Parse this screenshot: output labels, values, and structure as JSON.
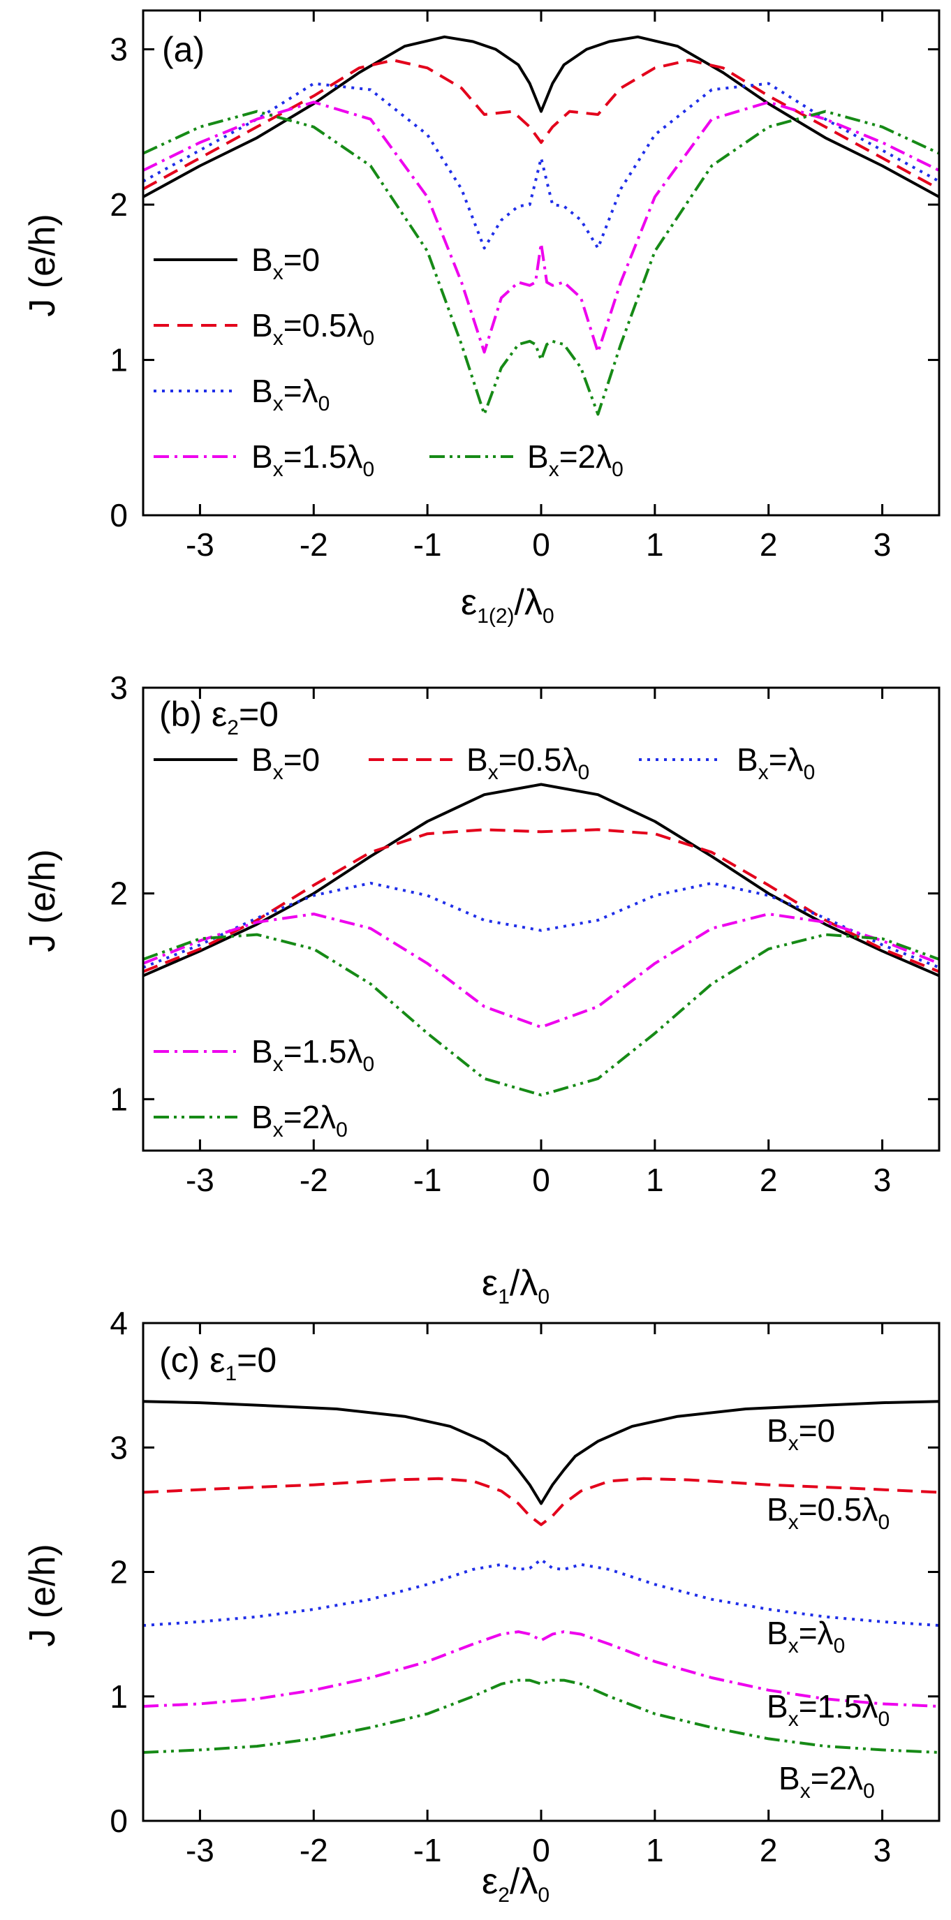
{
  "chart_data": [
    {
      "type": "line",
      "panel": "a",
      "title": "(a)",
      "xlabel": "ε1(2)/λ0",
      "ylabel": "J (e/h)",
      "xlim": [
        -3.5,
        3.5
      ],
      "ylim": [
        0,
        3.25
      ],
      "xticks": [
        -3,
        -2,
        -1,
        0,
        1,
        2,
        3
      ],
      "yticks": [
        0,
        1,
        2,
        3
      ],
      "series": [
        {
          "name": "Bx=0",
          "sub": "x",
          "tail": "=0",
          "color": "#000000",
          "dash": "solid",
          "x": [
            0,
            0.1,
            0.2,
            0.4,
            0.6,
            0.85,
            1.2,
            1.6,
            2.0,
            2.5,
            3.0,
            3.5
          ],
          "y": [
            2.6,
            2.78,
            2.9,
            3.0,
            3.05,
            3.08,
            3.02,
            2.85,
            2.65,
            2.43,
            2.25,
            2.05
          ]
        },
        {
          "name": "Bx=0.5λ0",
          "sub": "x",
          "tail": "=0.5λ0",
          "color": "#e3001b",
          "dash": "dashed",
          "x": [
            0,
            0.1,
            0.25,
            0.5,
            0.7,
            1.0,
            1.3,
            1.6,
            2.0,
            2.5,
            3.0,
            3.5
          ],
          "y": [
            2.4,
            2.5,
            2.6,
            2.58,
            2.75,
            2.88,
            2.93,
            2.88,
            2.7,
            2.5,
            2.3,
            2.1
          ]
        },
        {
          "name": "Bx=λ0",
          "sub": "x",
          "tail": "=λ0",
          "color": "#1f2ee8",
          "dash": "dotted",
          "x": [
            0,
            0.05,
            0.1,
            0.2,
            0.35,
            0.5,
            0.7,
            1.0,
            1.5,
            2.0,
            2.5,
            3.0,
            3.5
          ],
          "y": [
            2.3,
            2.15,
            2.0,
            1.99,
            1.9,
            1.72,
            2.1,
            2.45,
            2.74,
            2.78,
            2.55,
            2.35,
            2.15
          ]
        },
        {
          "name": "Bx=1.5λ0",
          "sub": "x",
          "tail": "=1.5λ0",
          "color": "#ee00ee",
          "dash": "dashdot",
          "x": [
            0,
            0.05,
            0.1,
            0.2,
            0.35,
            0.5,
            0.7,
            1.0,
            1.5,
            2.0,
            2.5,
            3.0,
            3.5
          ],
          "y": [
            1.75,
            1.5,
            1.48,
            1.5,
            1.4,
            1.05,
            1.5,
            2.05,
            2.55,
            2.66,
            2.55,
            2.4,
            2.22
          ]
        },
        {
          "name": "Bx=2λ0",
          "sub": "x",
          "tail": "=2λ0",
          "color": "#168a16",
          "dash": "dashdotdot",
          "x": [
            0,
            0.05,
            0.1,
            0.2,
            0.35,
            0.5,
            0.7,
            1.0,
            1.5,
            2.0,
            2.5,
            3.0,
            3.5
          ],
          "y": [
            1.0,
            1.1,
            1.12,
            1.1,
            0.95,
            0.65,
            1.1,
            1.7,
            2.25,
            2.5,
            2.6,
            2.5,
            2.33
          ]
        }
      ]
    },
    {
      "type": "line",
      "panel": "b",
      "title": "(b) ε2=0",
      "xlabel": "ε1/λ0",
      "ylabel": "J (e/h)",
      "xlim": [
        -3.5,
        3.5
      ],
      "ylim": [
        0.75,
        3.0
      ],
      "xticks": [
        -3,
        -2,
        -1,
        0,
        1,
        2,
        3
      ],
      "yticks": [
        1,
        2,
        3
      ],
      "series": [
        {
          "name": "Bx=0",
          "sub": "x",
          "tail": "=0",
          "color": "#000000",
          "dash": "solid",
          "x": [
            0,
            0.5,
            1.0,
            1.5,
            2.0,
            2.5,
            3.0,
            3.5
          ],
          "y": [
            2.53,
            2.48,
            2.35,
            2.18,
            2.0,
            1.85,
            1.72,
            1.6
          ]
        },
        {
          "name": "Bx=0.5λ0",
          "sub": "x",
          "tail": "=0.5λ0",
          "color": "#e3001b",
          "dash": "dashed",
          "x": [
            0,
            0.5,
            1.0,
            1.5,
            2.0,
            2.5,
            3.0,
            3.5
          ],
          "y": [
            2.3,
            2.31,
            2.29,
            2.2,
            2.04,
            1.87,
            1.73,
            1.62
          ]
        },
        {
          "name": "Bx=λ0",
          "sub": "x",
          "tail": "=λ0",
          "color": "#1f2ee8",
          "dash": "dotted",
          "x": [
            0,
            0.5,
            1.0,
            1.5,
            2.0,
            2.5,
            3.0,
            3.5
          ],
          "y": [
            1.82,
            1.87,
            1.99,
            2.05,
            1.99,
            1.88,
            1.75,
            1.64
          ]
        },
        {
          "name": "Bx=1.5λ0",
          "sub": "x",
          "tail": "=1.5λ0",
          "color": "#ee00ee",
          "dash": "dashdot",
          "x": [
            0,
            0.5,
            1.0,
            1.5,
            2.0,
            2.5,
            3.0,
            3.5
          ],
          "y": [
            1.35,
            1.45,
            1.66,
            1.83,
            1.9,
            1.86,
            1.77,
            1.66
          ]
        },
        {
          "name": "Bx=2λ0",
          "sub": "x",
          "tail": "=2λ0",
          "color": "#168a16",
          "dash": "dashdotdot",
          "x": [
            0,
            0.5,
            1.0,
            1.5,
            2.0,
            2.5,
            3.0,
            3.5
          ],
          "y": [
            1.02,
            1.1,
            1.32,
            1.56,
            1.73,
            1.8,
            1.78,
            1.68
          ]
        }
      ]
    },
    {
      "type": "line",
      "panel": "c",
      "title": "(c) ε1=0",
      "xlabel": "ε2/λ0",
      "ylabel": "J (e/h)",
      "xlim": [
        -3.5,
        3.5
      ],
      "ylim": [
        0,
        4
      ],
      "xticks": [
        -3,
        -2,
        -1,
        0,
        1,
        2,
        3
      ],
      "yticks": [
        0,
        1,
        2,
        3,
        4
      ],
      "series": [
        {
          "name": "Bx=0",
          "sub": "x",
          "tail": "=0",
          "color": "#000000",
          "dash": "solid",
          "x": [
            0,
            0.1,
            0.2,
            0.3,
            0.5,
            0.8,
            1.2,
            1.8,
            2.5,
            3.0,
            3.5
          ],
          "y": [
            2.55,
            2.7,
            2.82,
            2.93,
            3.05,
            3.17,
            3.25,
            3.31,
            3.34,
            3.36,
            3.37
          ]
        },
        {
          "name": "Bx=0.5λ0",
          "sub": "x",
          "tail": "=0.5λ0",
          "color": "#e3001b",
          "dash": "dashed",
          "x": [
            0,
            0.1,
            0.2,
            0.35,
            0.6,
            0.9,
            1.3,
            2.0,
            2.8,
            3.5
          ],
          "y": [
            2.38,
            2.45,
            2.55,
            2.65,
            2.73,
            2.75,
            2.74,
            2.7,
            2.67,
            2.64
          ]
        },
        {
          "name": "Bx=λ0",
          "sub": "x",
          "tail": "=λ0",
          "color": "#1f2ee8",
          "dash": "dotted",
          "x": [
            0,
            0.1,
            0.2,
            0.35,
            0.6,
            1.0,
            1.5,
            2.0,
            2.5,
            3.0,
            3.5
          ],
          "y": [
            2.1,
            2.03,
            2.02,
            2.06,
            2.02,
            1.9,
            1.78,
            1.7,
            1.64,
            1.6,
            1.57
          ]
        },
        {
          "name": "Bx=1.5λ0",
          "sub": "x",
          "tail": "=1.5λ0",
          "color": "#ee00ee",
          "dash": "dashdot",
          "x": [
            0,
            0.1,
            0.2,
            0.35,
            0.6,
            1.0,
            1.5,
            2.0,
            2.5,
            3.0,
            3.5
          ],
          "y": [
            1.45,
            1.5,
            1.52,
            1.5,
            1.42,
            1.28,
            1.15,
            1.05,
            0.98,
            0.94,
            0.92
          ]
        },
        {
          "name": "Bx=2λ0",
          "sub": "x",
          "tail": "=2λ0",
          "color": "#168a16",
          "dash": "dashdotdot",
          "x": [
            0,
            0.1,
            0.2,
            0.35,
            0.6,
            1.0,
            1.5,
            2.0,
            2.5,
            3.0,
            3.5
          ],
          "y": [
            1.1,
            1.13,
            1.13,
            1.1,
            1.0,
            0.86,
            0.75,
            0.66,
            0.6,
            0.57,
            0.55
          ]
        }
      ]
    }
  ]
}
